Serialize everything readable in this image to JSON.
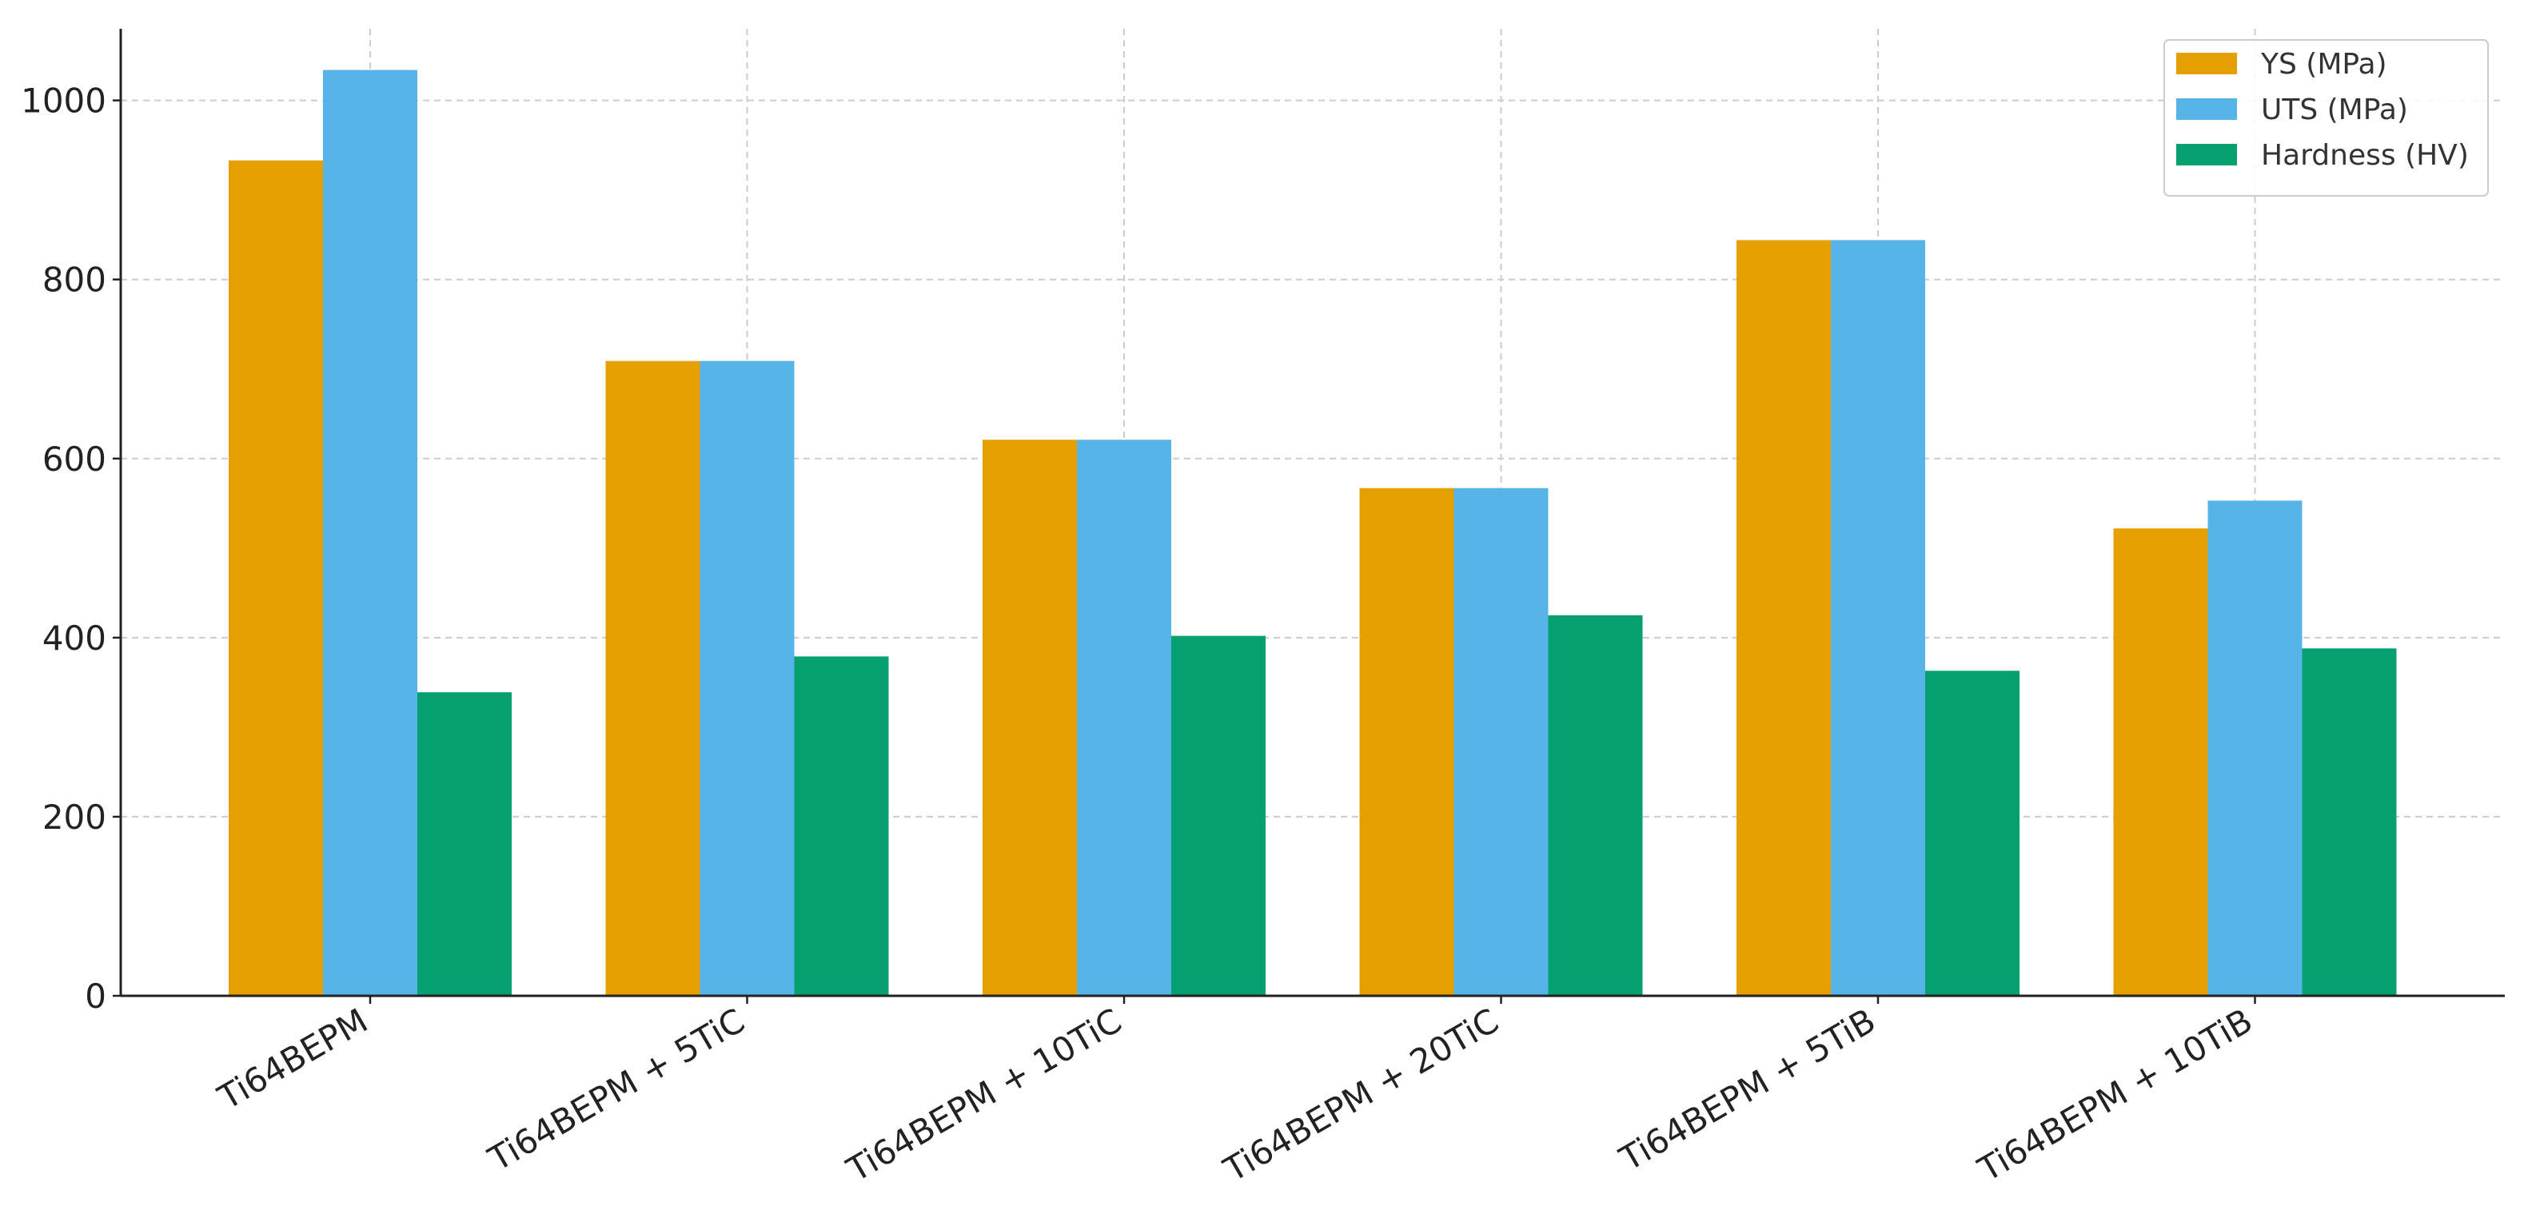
{
  "chart_data": {
    "type": "bar",
    "categories": [
      "Ti64BEPM",
      "Ti64BEPM + 5TiC",
      "Ti64BEPM + 10TiC",
      "Ti64BEPM + 20TiC",
      "Ti64BEPM + 5TiB",
      "Ti64BEPM + 10TiB"
    ],
    "series": [
      {
        "name": "YS (MPa)",
        "color": "#e69f00",
        "values": [
          933,
          709,
          621,
          567,
          844,
          522
        ]
      },
      {
        "name": "UTS (MPa)",
        "color": "#56b4e9",
        "values": [
          1034,
          709,
          621,
          567,
          844,
          553
        ]
      },
      {
        "name": "Hardness (HV)",
        "color": "#06a070",
        "values": [
          339,
          379,
          402,
          425,
          363,
          388
        ]
      }
    ],
    "ylim": [
      0,
      1080
    ],
    "yticks": [
      0,
      200,
      400,
      600,
      800,
      1000
    ],
    "grid": true,
    "legend": "upper right"
  }
}
